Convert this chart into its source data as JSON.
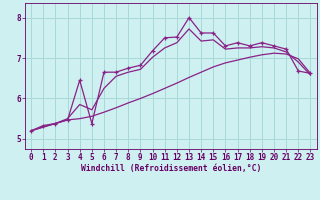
{
  "bg_color": "#cff0f0",
  "grid_color": "#a8d8d8",
  "line_color": "#882288",
  "xlabel": "Windchill (Refroidissement éolien,°C)",
  "tick_color": "#660066",
  "ylim": [
    4.75,
    8.35
  ],
  "xlim": [
    -0.5,
    23.5
  ],
  "yticks": [
    5,
    6,
    7,
    8
  ],
  "xticks": [
    0,
    1,
    2,
    3,
    4,
    5,
    6,
    7,
    8,
    9,
    10,
    11,
    12,
    13,
    14,
    15,
    16,
    17,
    18,
    19,
    20,
    21,
    22,
    23
  ],
  "wavy_x": [
    0,
    1,
    2,
    3,
    4,
    5,
    6,
    7,
    8,
    9,
    10,
    11,
    12,
    13,
    14,
    15,
    16,
    17,
    18,
    19,
    20,
    21,
    22,
    23
  ],
  "wavy_y": [
    5.2,
    5.33,
    5.38,
    5.47,
    6.45,
    5.38,
    6.65,
    6.65,
    6.75,
    6.82,
    7.18,
    7.5,
    7.52,
    8.0,
    7.62,
    7.62,
    7.3,
    7.38,
    7.3,
    7.38,
    7.3,
    7.22,
    6.68,
    6.62
  ],
  "smooth_x": [
    0,
    1,
    2,
    3,
    4,
    5,
    6,
    7,
    8,
    9,
    10,
    11,
    12,
    13,
    14,
    15,
    16,
    17,
    18,
    19,
    20,
    21,
    22,
    23
  ],
  "smooth_y": [
    5.2,
    5.3,
    5.38,
    5.5,
    5.85,
    5.72,
    6.25,
    6.55,
    6.65,
    6.72,
    7.02,
    7.25,
    7.38,
    7.72,
    7.42,
    7.45,
    7.22,
    7.25,
    7.25,
    7.28,
    7.25,
    7.15,
    6.9,
    6.58
  ],
  "straight_x": [
    0,
    1,
    2,
    3,
    4,
    5,
    6,
    7,
    8,
    9,
    10,
    11,
    12,
    13,
    14,
    15,
    16,
    17,
    18,
    19,
    20,
    21,
    22,
    23
  ],
  "straight_y": [
    5.2,
    5.29,
    5.38,
    5.47,
    5.5,
    5.56,
    5.66,
    5.77,
    5.89,
    6.0,
    6.12,
    6.25,
    6.38,
    6.52,
    6.65,
    6.78,
    6.88,
    6.95,
    7.02,
    7.08,
    7.12,
    7.1,
    6.98,
    6.62
  ]
}
